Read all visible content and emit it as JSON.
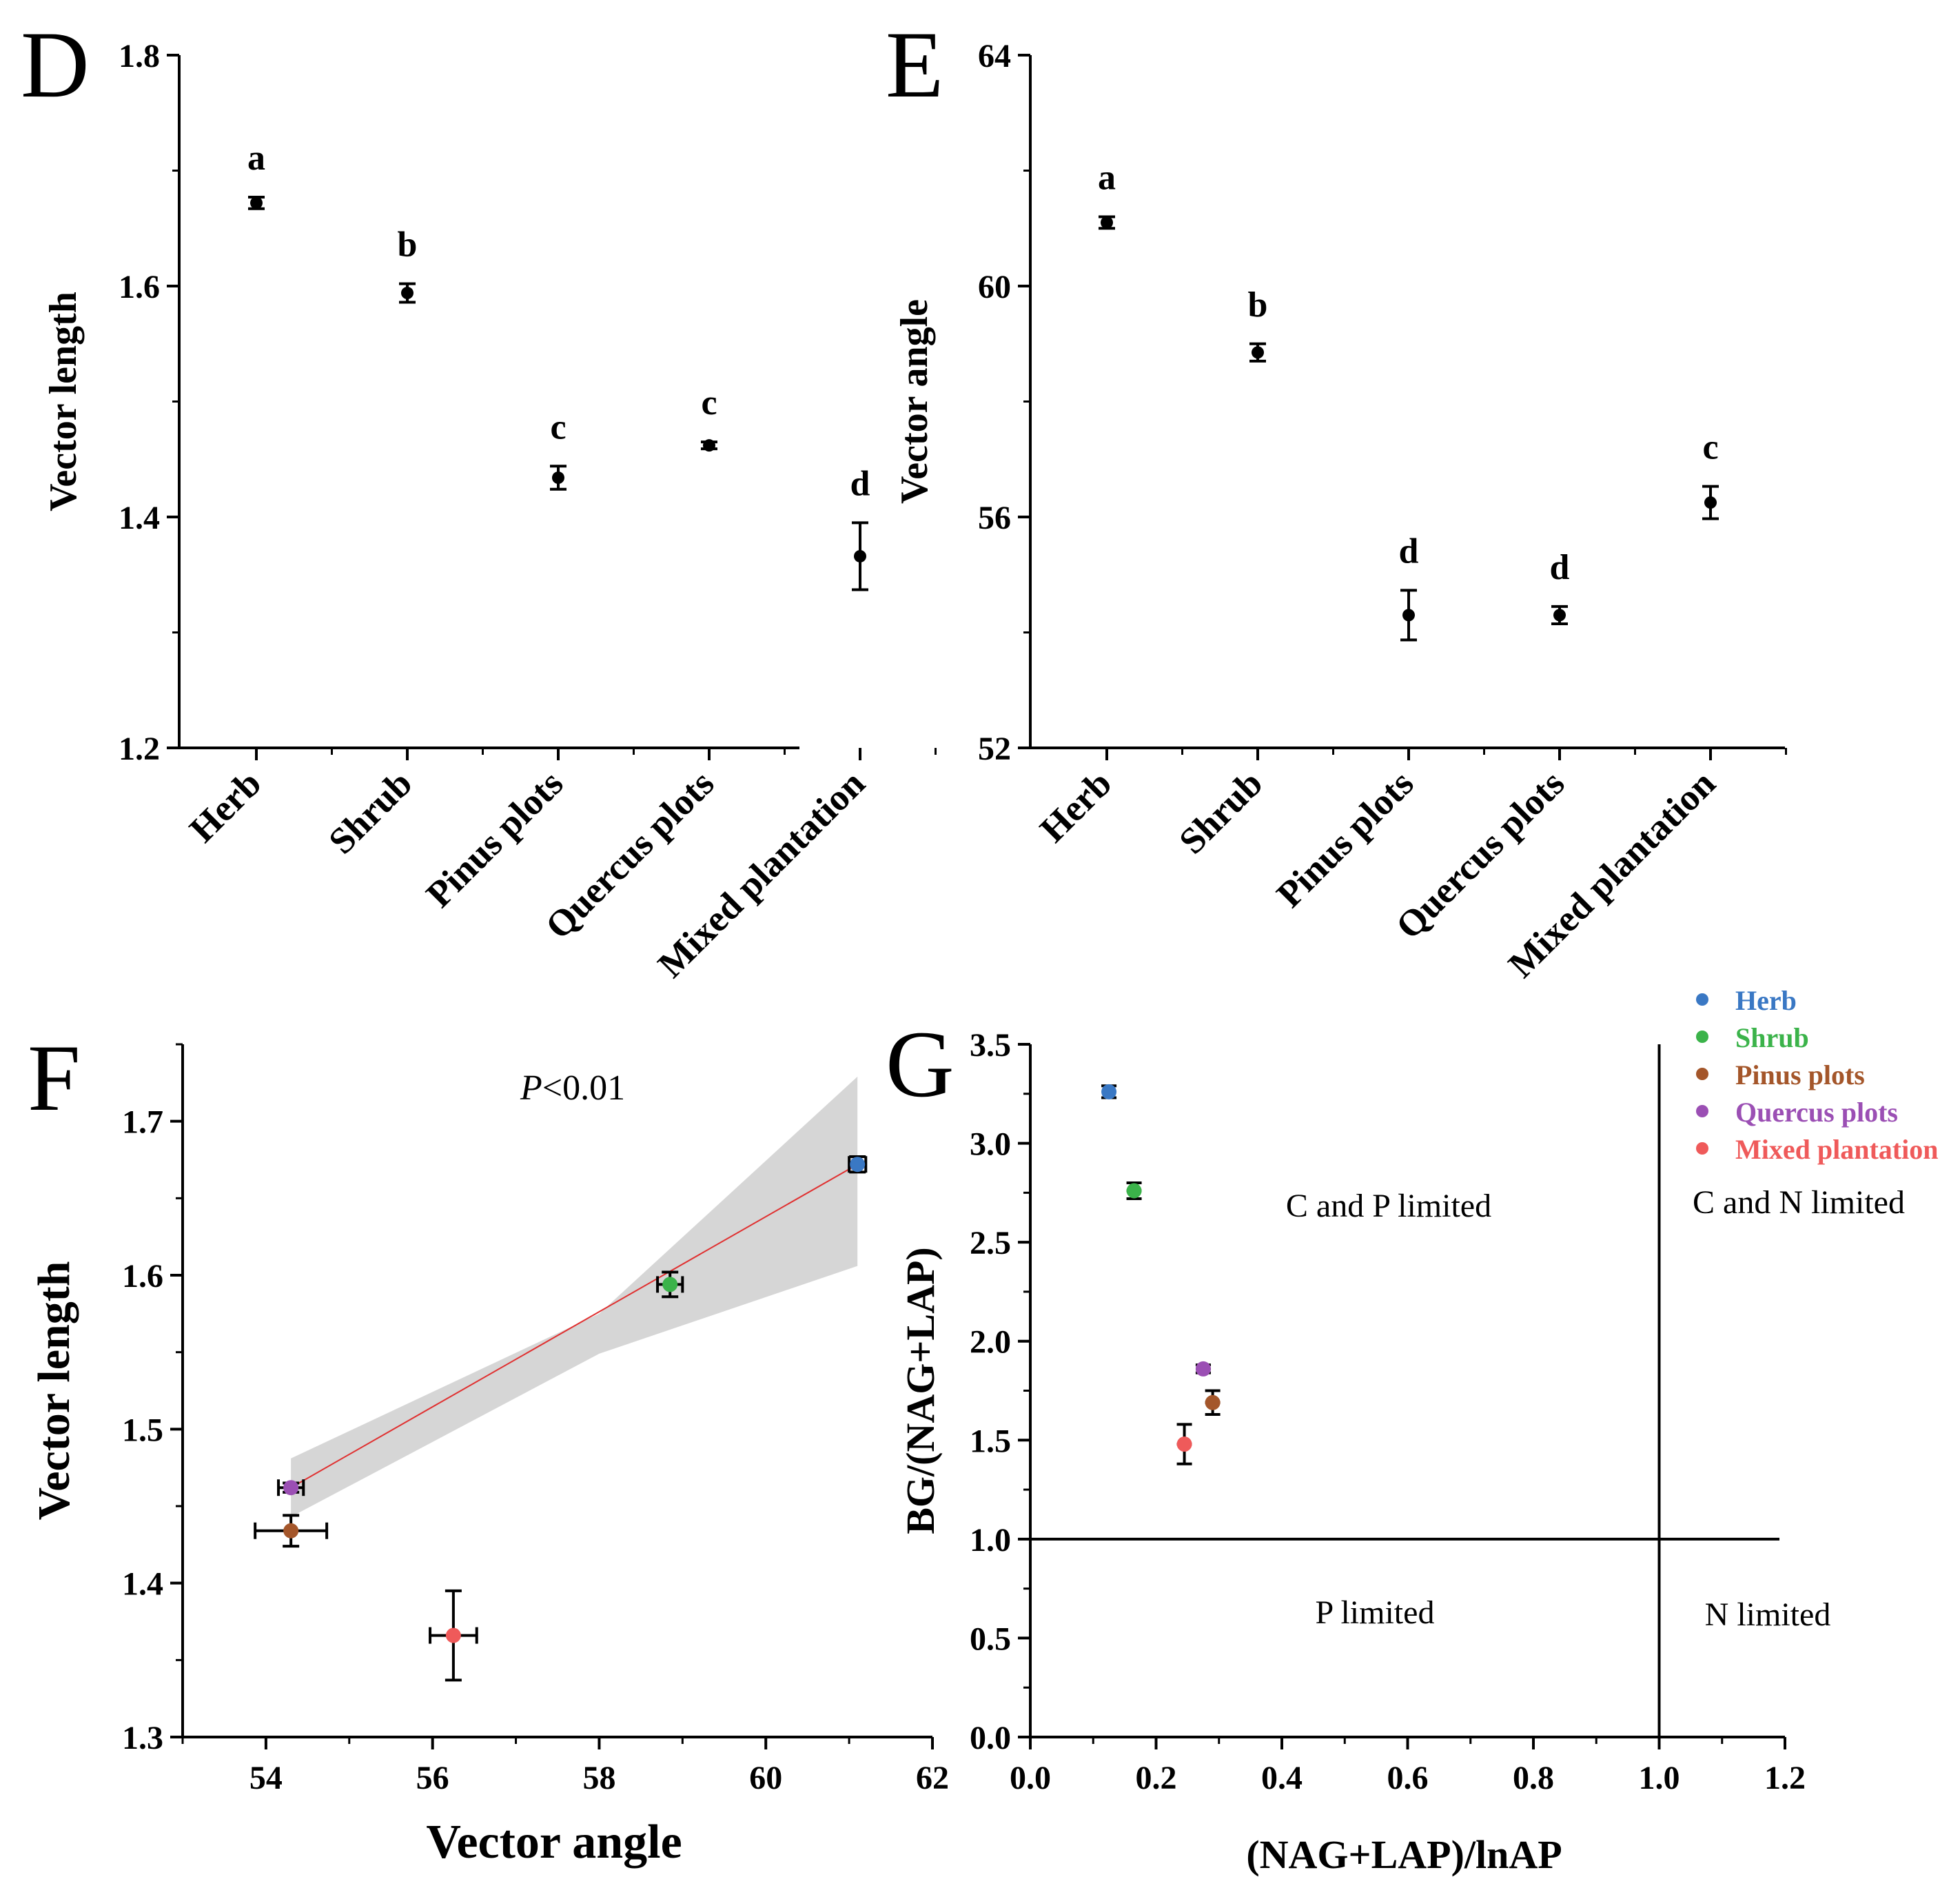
{
  "chart_data": [
    {
      "panel": "D",
      "type": "scatter",
      "categories": [
        "Herb",
        "Shrub",
        "Pinus plots",
        "Quercus plots",
        "Mixed plantation"
      ],
      "values": [
        1.672,
        1.594,
        1.434,
        1.462,
        1.366
      ],
      "errors": [
        0.005,
        0.008,
        0.01,
        0.003,
        0.029
      ],
      "letters": [
        "a",
        "b",
        "c",
        "c",
        "d"
      ],
      "ylabel": "Vector length",
      "ylim": [
        1.2,
        1.8
      ],
      "yticks": [
        "1.2",
        "1.4",
        "1.6",
        "1.8"
      ]
    },
    {
      "panel": "E",
      "type": "scatter",
      "categories": [
        "Herb",
        "Shrub",
        "Pinus plots",
        "Quercus plots",
        "Mixed plantation"
      ],
      "values": [
        61.1,
        58.85,
        54.3,
        54.3,
        56.25
      ],
      "errors": [
        0.1,
        0.15,
        0.43,
        0.15,
        0.28
      ],
      "letters": [
        "a",
        "b",
        "d",
        "d",
        "c"
      ],
      "ylabel": "Vector angle",
      "ylim": [
        52,
        64
      ],
      "yticks": [
        "52",
        "56",
        "60",
        "64"
      ]
    },
    {
      "panel": "F",
      "type": "scatter",
      "xlabel": "Vector angle",
      "ylabel": "Vector length",
      "xlim": [
        53,
        62
      ],
      "ylim": [
        1.3,
        1.75
      ],
      "xticks": [
        "54",
        "56",
        "58",
        "60",
        "62"
      ],
      "yticks": [
        "1.3",
        "1.4",
        "1.5",
        "1.6",
        "1.7"
      ],
      "annotation": "<0.01",
      "annotation_prefix": "P",
      "points": [
        {
          "name": "Herb",
          "x": 61.1,
          "y": 1.672,
          "xerr": 0.1,
          "yerr": 0.005
        },
        {
          "name": "Shrub",
          "x": 58.85,
          "y": 1.594,
          "xerr": 0.15,
          "yerr": 0.008
        },
        {
          "name": "Pinus plots",
          "x": 54.3,
          "y": 1.434,
          "xerr": 0.43,
          "yerr": 0.01
        },
        {
          "name": "Quercus plots",
          "x": 54.3,
          "y": 1.462,
          "xerr": 0.15,
          "yerr": 0.003
        },
        {
          "name": "Mixed plantation",
          "x": 56.25,
          "y": 1.366,
          "xerr": 0.28,
          "yerr": 0.029
        }
      ],
      "fit_line": {
        "x": [
          54.3,
          61.1
        ],
        "y": [
          1.462,
          1.672
        ]
      },
      "confidence_band": {
        "x": [
          54.3,
          58.0,
          61.1
        ],
        "upper": [
          1.481,
          1.575,
          1.729
        ],
        "lower": [
          1.443,
          1.549,
          1.606
        ]
      }
    },
    {
      "panel": "G",
      "type": "scatter",
      "xlabel": "(NAG+LAP)/lnAP",
      "ylabel": "BG/(NAG+LAP)",
      "xlim": [
        0.0,
        1.2
      ],
      "ylim": [
        0.0,
        3.5
      ],
      "xticks": [
        "0.0",
        "0.2",
        "0.4",
        "0.6",
        "0.8",
        "1.0",
        "1.2"
      ],
      "yticks": [
        "0.0",
        "0.5",
        "1.0",
        "1.5",
        "2.0",
        "2.5",
        "3.0",
        "3.5"
      ],
      "reference_lines": {
        "x": 1.0,
        "y": 1.0
      },
      "quadrant_labels": [
        "C and P limited",
        "C and N limited",
        "P limited",
        "N limited"
      ],
      "points": [
        {
          "name": "Herb",
          "x": 0.125,
          "y": 3.26,
          "xerr": 0.01,
          "yerr": 0.03
        },
        {
          "name": "Shrub",
          "x": 0.165,
          "y": 2.76,
          "xerr": 0.012,
          "yerr": 0.04
        },
        {
          "name": "Pinus plots",
          "x": 0.29,
          "y": 1.69,
          "xerr": 0.012,
          "yerr": 0.06
        },
        {
          "name": "Quercus plots",
          "x": 0.275,
          "y": 1.86,
          "xerr": 0.012,
          "yerr": 0.02
        },
        {
          "name": "Mixed plantation",
          "x": 0.245,
          "y": 1.48,
          "xerr": 0.012,
          "yerr": 0.1
        }
      ],
      "legend": [
        "Herb",
        "Shrub",
        "Pinus plots",
        "Quercus plots",
        "Mixed plantation"
      ],
      "legend_position": "top-right"
    }
  ],
  "colors": {
    "Herb": "#3a78c4",
    "Shrub": "#3bb34a",
    "Pinus plots": "#a4562a",
    "Quercus plots": "#9b4fb4",
    "Mixed plantation": "#ef5a5a"
  },
  "band_color": "#d6d6d6",
  "fit_color": "#e03030"
}
